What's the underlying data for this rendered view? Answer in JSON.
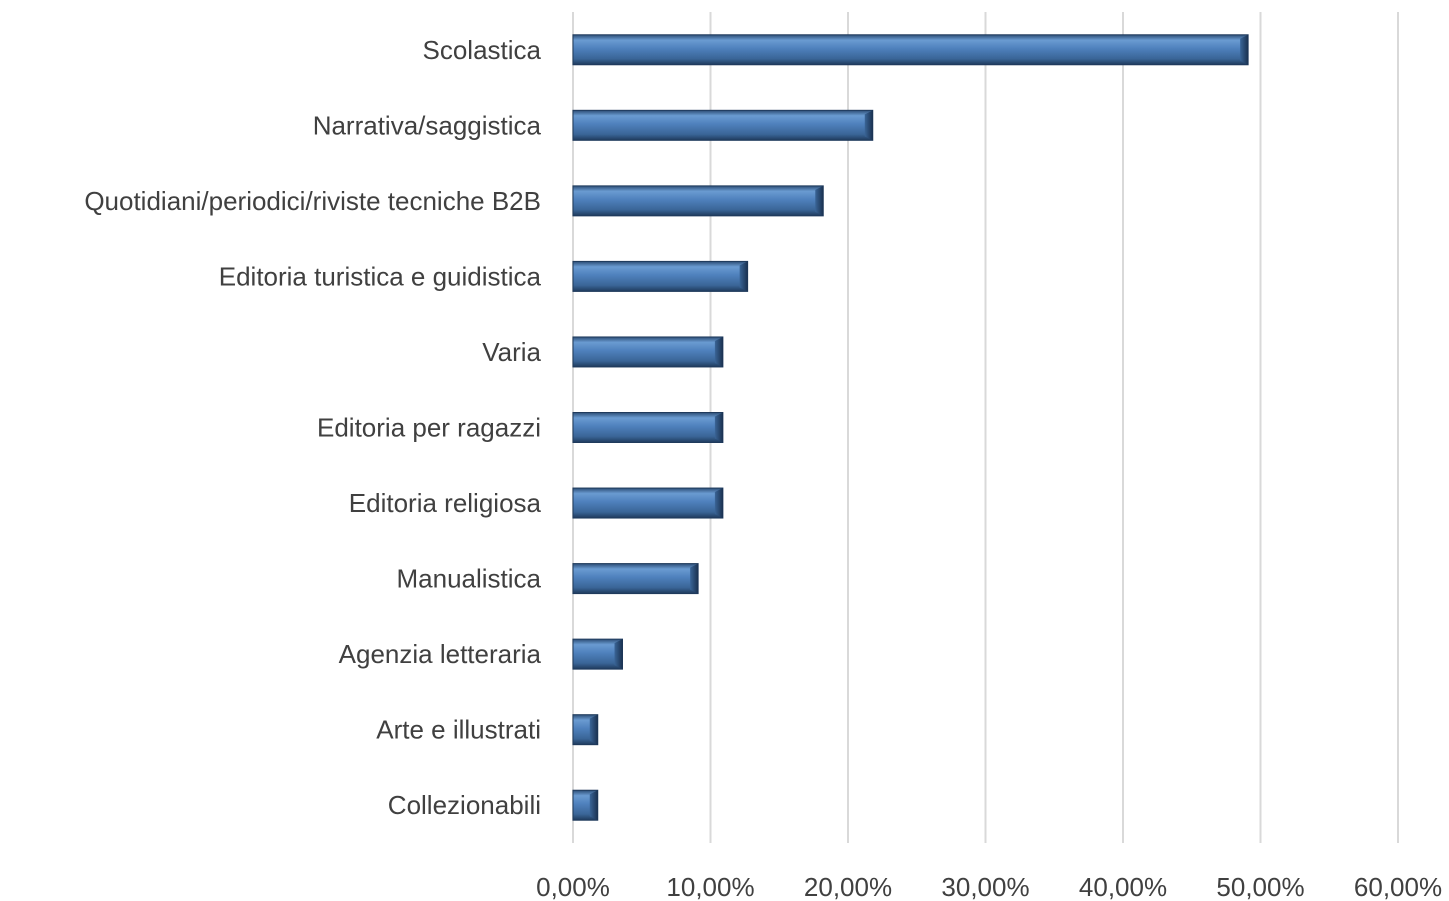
{
  "chart_data": {
    "type": "bar",
    "orientation": "horizontal",
    "categories": [
      "Scolastica",
      "Narrativa/saggistica",
      "Quotidiani/periodici/riviste tecniche B2B",
      "Editoria turistica e guidistica",
      "Varia",
      "Editoria per ragazzi",
      "Editoria religiosa",
      "Manualistica",
      "Agenzia letteraria",
      "Arte e illustrati",
      "Collezionabili"
    ],
    "values": [
      49.1,
      21.8,
      18.2,
      12.7,
      10.9,
      10.9,
      10.9,
      9.1,
      3.6,
      1.8,
      1.8
    ],
    "x_ticks": [
      "0,00%",
      "10,00%",
      "20,00%",
      "30,00%",
      "40,00%",
      "50,00%",
      "60,00%"
    ],
    "xlim": [
      0,
      60
    ],
    "title": "",
    "xlabel": "",
    "ylabel": "",
    "grid": "vertical",
    "legend": "none",
    "bar_color": "#4f81bd"
  }
}
